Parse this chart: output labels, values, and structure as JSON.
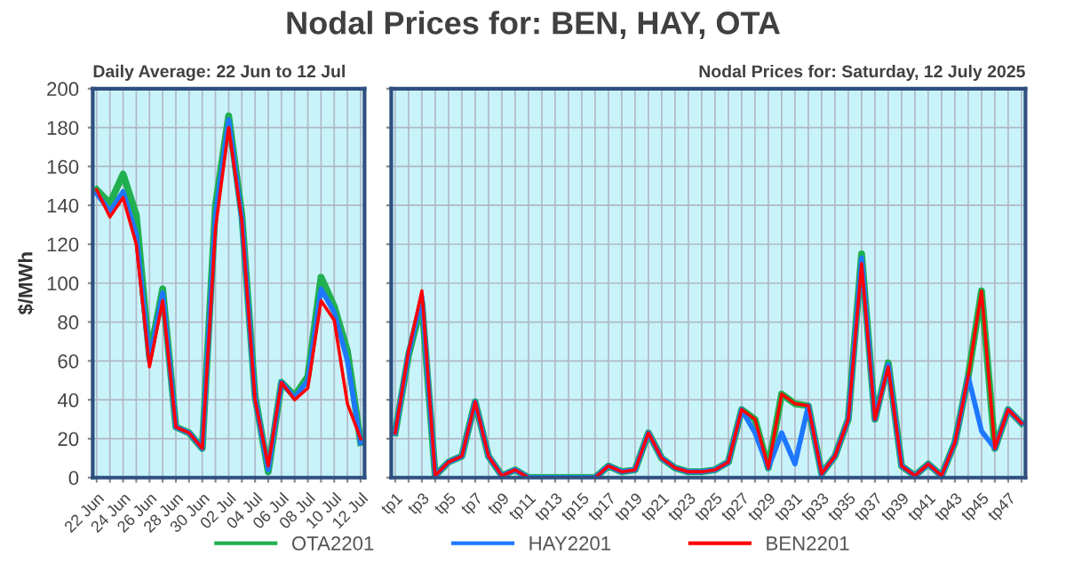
{
  "chart_data": [
    {
      "type": "line",
      "title": "Nodal Prices for: BEN, HAY, OTA",
      "subtitle": "Daily Average: 22 Jun to 12 Jul",
      "ylabel": "$/MWh",
      "categories": [
        "22 Jun",
        null,
        "24 Jun",
        null,
        "26 Jun",
        null,
        "28 Jun",
        null,
        "30 Jun",
        null,
        "02 Jul",
        null,
        "04 Jul",
        null,
        "06 Jul",
        null,
        "08 Jul",
        null,
        "10 Jul",
        null,
        "12 Jul"
      ],
      "series": [
        {
          "name": "OTA2201",
          "color": "#20b050",
          "values": [
            148,
            141,
            156,
            135,
            62,
            97,
            26,
            23,
            15,
            140,
            186,
            135,
            42,
            3,
            49,
            42,
            52,
            103,
            88,
            65,
            18
          ]
        },
        {
          "name": "HAY2201",
          "color": "#1e78ff",
          "values": [
            146,
            137,
            147,
            125,
            60,
            95,
            26,
            23,
            15,
            135,
            184,
            133,
            41,
            4,
            49,
            41,
            50,
            97,
            85,
            60,
            18
          ]
        },
        {
          "name": "BEN2201",
          "color": "#ff0000",
          "values": [
            148,
            134,
            144,
            120,
            57,
            91,
            26,
            23,
            15,
            128,
            180,
            132,
            40,
            6,
            49,
            40,
            46,
            91,
            81,
            38,
            20
          ]
        }
      ],
      "ylim": [
        0,
        200
      ],
      "yticks": [
        0,
        20,
        40,
        60,
        80,
        100,
        120,
        140,
        160,
        180,
        200
      ],
      "grid": true,
      "legend": "bottom",
      "line_style": "solid",
      "marker": "none"
    },
    {
      "type": "line",
      "subtitle": "Nodal Prices for: Saturday, 12 July 2025",
      "categories": [
        "tp1",
        null,
        "tp3",
        null,
        "tp5",
        null,
        "tp7",
        null,
        "tp9",
        null,
        "tp11",
        null,
        "tp13",
        null,
        "tp15",
        null,
        "tp17",
        null,
        "tp19",
        null,
        "tp21",
        null,
        "tp23",
        null,
        "tp25",
        null,
        "tp27",
        null,
        "tp29",
        null,
        "tp31",
        null,
        "tp33",
        null,
        "tp35",
        null,
        "tp37",
        null,
        "tp39",
        null,
        "tp41",
        null,
        "tp43",
        null,
        "tp45",
        null,
        "tp47",
        null
      ],
      "series": [
        {
          "color": "#20b050",
          "values": [
            23,
            63,
            90,
            1,
            8,
            11,
            39,
            11,
            1,
            4,
            0,
            0,
            0,
            0,
            0,
            0,
            6,
            3,
            4,
            23,
            10,
            5,
            3,
            3,
            4,
            8,
            35,
            30,
            5,
            43,
            38,
            37,
            2,
            11,
            30,
            115,
            30,
            59,
            6,
            1,
            7,
            1,
            18,
            52,
            96,
            15,
            35,
            28
          ]
        },
        {
          "color": "#1e78ff",
          "values": [
            23,
            64,
            93,
            1,
            8,
            11,
            39,
            11,
            1,
            4,
            0,
            0,
            0,
            0,
            0,
            0,
            6,
            3,
            4,
            23,
            10,
            5,
            3,
            3,
            4,
            8,
            35,
            23,
            5,
            23,
            7,
            37,
            2,
            11,
            30,
            113,
            30,
            58,
            6,
            1,
            7,
            1,
            18,
            52,
            24,
            15,
            35,
            28
          ]
        },
        {
          "color": "#ff0000",
          "values": [
            23,
            65,
            96,
            1,
            8,
            11,
            39,
            11,
            1,
            4,
            0,
            0,
            0,
            0,
            0,
            0,
            6,
            3,
            4,
            23,
            10,
            5,
            3,
            3,
            4,
            8,
            35,
            30,
            5,
            43,
            38,
            37,
            2,
            11,
            30,
            110,
            30,
            57,
            6,
            1,
            7,
            1,
            18,
            52,
            96,
            15,
            35,
            28
          ]
        }
      ],
      "ylim": [
        0,
        200
      ],
      "yticks": [
        0,
        20,
        40,
        60,
        80,
        100,
        120,
        140,
        160,
        180,
        200
      ],
      "grid": true,
      "tick_labels": "x",
      "line_style": "solid",
      "marker": "none"
    }
  ]
}
